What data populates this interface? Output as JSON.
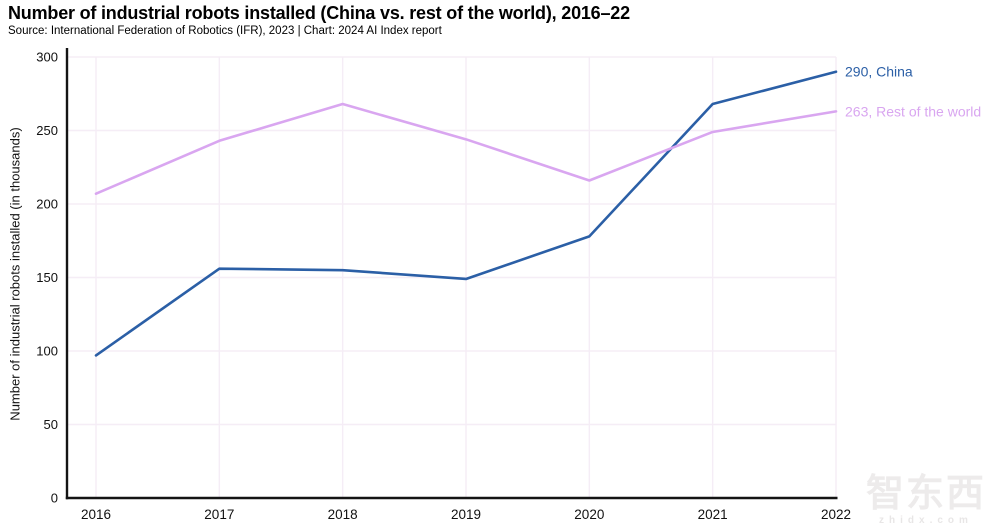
{
  "header": {
    "title": "Number of industrial robots installed (China vs. rest of the world), 2016–22",
    "source": "Source: International Federation of Robotics (IFR), 2023 | Chart: 2024 AI Index report"
  },
  "chart_data": {
    "type": "line",
    "title": "Number of industrial robots installed (China vs. rest of the world), 2016–22",
    "x": [
      2016,
      2017,
      2018,
      2019,
      2020,
      2021,
      2022
    ],
    "series": [
      {
        "name": "China",
        "color": "#2b5fa6",
        "values": [
          97,
          156,
          155,
          149,
          178,
          268,
          290
        ],
        "end_label": "290, China"
      },
      {
        "name": "Rest of the world",
        "color": "#d9a6f0",
        "values": [
          207,
          243,
          268,
          244,
          216,
          249,
          263
        ],
        "end_label": "263, Rest of the world"
      }
    ],
    "xlabel": "",
    "ylabel": "Number of industrial robots installed (in thousands)",
    "ylim": [
      0,
      300
    ],
    "yticks": [
      0,
      50,
      100,
      150,
      200,
      250,
      300
    ],
    "grid": true,
    "legend_position": "end-of-line labels, right side"
  },
  "watermark": {
    "text": "智东西",
    "subtext": "zhidx.com"
  },
  "colors": {
    "background": "#ffffff",
    "axis": "#141414",
    "grid": "#f5edf6",
    "tick_text": "#111111"
  }
}
